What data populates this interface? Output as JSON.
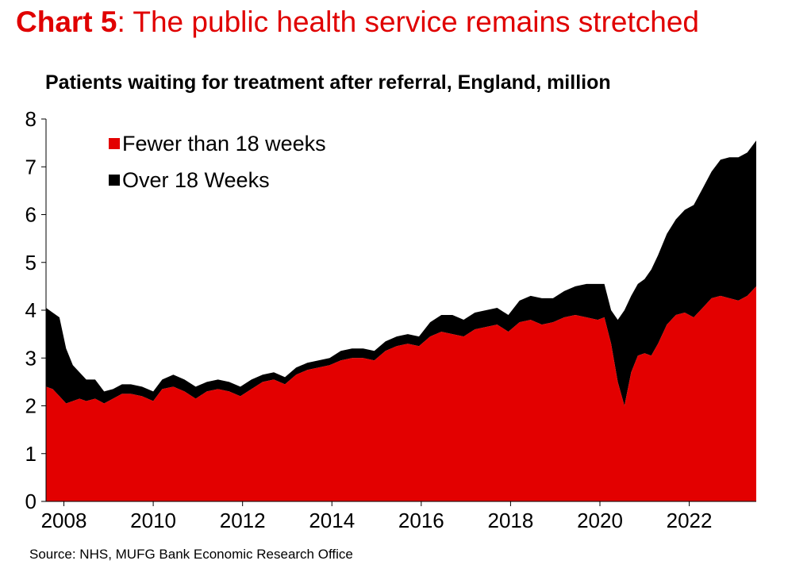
{
  "header": {
    "chart_number": "Chart 5",
    "title_rest": ": The public health service remains stretched"
  },
  "source": "Source: NHS, MUFG Bank Economic Research Office",
  "colors": {
    "fewer_than_18_weeks": "#e30000",
    "over_18_weeks": "#000000",
    "title": "#e00000"
  },
  "chart_data": {
    "type": "area",
    "stacked": true,
    "title": "Patients waiting for treatment after referral, England, million",
    "xlabel": "",
    "ylabel": "",
    "ylim": [
      0,
      8
    ],
    "xlim": [
      2007.6,
      2023.5
    ],
    "y_ticks": [
      0,
      1,
      2,
      3,
      4,
      5,
      6,
      7,
      8
    ],
    "x_ticks": [
      2008,
      2010,
      2012,
      2014,
      2016,
      2018,
      2020,
      2022
    ],
    "grid": false,
    "legend_position": "top-left",
    "x": [
      2007.6,
      2007.75,
      2007.9,
      2008.05,
      2008.2,
      2008.35,
      2008.5,
      2008.7,
      2008.9,
      2009.1,
      2009.3,
      2009.5,
      2009.75,
      2010.0,
      2010.2,
      2010.45,
      2010.7,
      2010.95,
      2011.2,
      2011.45,
      2011.7,
      2011.95,
      2012.2,
      2012.45,
      2012.7,
      2012.95,
      2013.2,
      2013.45,
      2013.7,
      2013.95,
      2014.2,
      2014.45,
      2014.7,
      2014.95,
      2015.2,
      2015.45,
      2015.7,
      2015.95,
      2016.2,
      2016.45,
      2016.7,
      2016.95,
      2017.2,
      2017.45,
      2017.7,
      2017.95,
      2018.2,
      2018.45,
      2018.7,
      2018.95,
      2019.2,
      2019.45,
      2019.7,
      2019.95,
      2020.1,
      2020.25,
      2020.4,
      2020.55,
      2020.7,
      2020.85,
      2021.0,
      2021.15,
      2021.3,
      2021.5,
      2021.7,
      2021.9,
      2022.1,
      2022.3,
      2022.5,
      2022.7,
      2022.9,
      2023.1,
      2023.3,
      2023.5
    ],
    "series": [
      {
        "name": "Fewer than 18 weeks",
        "values": [
          2.4,
          2.35,
          2.2,
          2.05,
          2.1,
          2.15,
          2.1,
          2.15,
          2.05,
          2.15,
          2.25,
          2.25,
          2.2,
          2.1,
          2.35,
          2.4,
          2.3,
          2.15,
          2.3,
          2.35,
          2.3,
          2.2,
          2.35,
          2.5,
          2.55,
          2.45,
          2.65,
          2.75,
          2.8,
          2.85,
          2.95,
          3.0,
          3.0,
          2.95,
          3.15,
          3.25,
          3.3,
          3.25,
          3.45,
          3.55,
          3.5,
          3.45,
          3.6,
          3.65,
          3.7,
          3.55,
          3.75,
          3.8,
          3.7,
          3.75,
          3.85,
          3.9,
          3.85,
          3.8,
          3.85,
          3.3,
          2.5,
          2.0,
          2.7,
          3.05,
          3.1,
          3.05,
          3.3,
          3.7,
          3.9,
          3.95,
          3.85,
          4.05,
          4.25,
          4.3,
          4.25,
          4.2,
          4.3,
          4.5
        ]
      },
      {
        "name": "Over 18 Weeks",
        "values": [
          1.65,
          1.6,
          1.65,
          1.15,
          0.75,
          0.55,
          0.45,
          0.4,
          0.25,
          0.2,
          0.2,
          0.2,
          0.2,
          0.2,
          0.2,
          0.25,
          0.25,
          0.25,
          0.2,
          0.2,
          0.2,
          0.2,
          0.2,
          0.15,
          0.15,
          0.15,
          0.15,
          0.15,
          0.15,
          0.15,
          0.2,
          0.2,
          0.2,
          0.2,
          0.2,
          0.2,
          0.2,
          0.2,
          0.3,
          0.35,
          0.4,
          0.35,
          0.35,
          0.35,
          0.35,
          0.35,
          0.45,
          0.5,
          0.55,
          0.5,
          0.55,
          0.6,
          0.7,
          0.75,
          0.7,
          0.7,
          1.3,
          2.0,
          1.6,
          1.5,
          1.55,
          1.8,
          1.85,
          1.9,
          2.0,
          2.15,
          2.35,
          2.5,
          2.65,
          2.85,
          2.95,
          3.0,
          3.0,
          3.05
        ]
      }
    ]
  }
}
